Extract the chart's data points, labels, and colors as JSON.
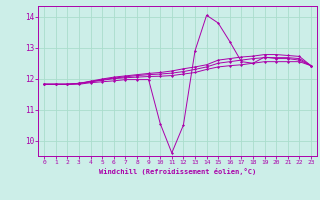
{
  "xlabel": "Windchill (Refroidissement éolien,°C)",
  "bg_color": "#cceee8",
  "grid_color": "#aaddcc",
  "line_color": "#aa00aa",
  "xlim": [
    -0.5,
    23.5
  ],
  "ylim": [
    9.5,
    14.35
  ],
  "yticks": [
    10,
    11,
    12,
    13,
    14
  ],
  "xticks": [
    0,
    1,
    2,
    3,
    4,
    5,
    6,
    7,
    8,
    9,
    10,
    11,
    12,
    13,
    14,
    15,
    16,
    17,
    18,
    19,
    20,
    21,
    22,
    23
  ],
  "line1": [
    11.82,
    11.82,
    11.82,
    11.82,
    11.87,
    11.9,
    11.93,
    11.97,
    11.97,
    11.97,
    10.55,
    9.6,
    10.5,
    12.9,
    14.05,
    13.8,
    13.2,
    12.55,
    12.5,
    12.7,
    12.65,
    12.65,
    12.6,
    12.42
  ],
  "line2": [
    11.82,
    11.82,
    11.82,
    11.85,
    11.9,
    11.95,
    12.0,
    12.03,
    12.05,
    12.07,
    12.08,
    12.1,
    12.15,
    12.2,
    12.3,
    12.38,
    12.42,
    12.45,
    12.5,
    12.55,
    12.55,
    12.55,
    12.55,
    12.42
  ],
  "line3": [
    11.82,
    11.82,
    11.82,
    11.85,
    11.9,
    11.97,
    12.02,
    12.06,
    12.1,
    12.13,
    12.15,
    12.18,
    12.23,
    12.3,
    12.38,
    12.5,
    12.55,
    12.6,
    12.65,
    12.68,
    12.68,
    12.68,
    12.65,
    12.42
  ],
  "line4": [
    11.82,
    11.82,
    11.82,
    11.85,
    11.92,
    11.99,
    12.05,
    12.09,
    12.13,
    12.17,
    12.2,
    12.25,
    12.32,
    12.38,
    12.45,
    12.6,
    12.65,
    12.7,
    12.73,
    12.78,
    12.78,
    12.75,
    12.72,
    12.42
  ]
}
